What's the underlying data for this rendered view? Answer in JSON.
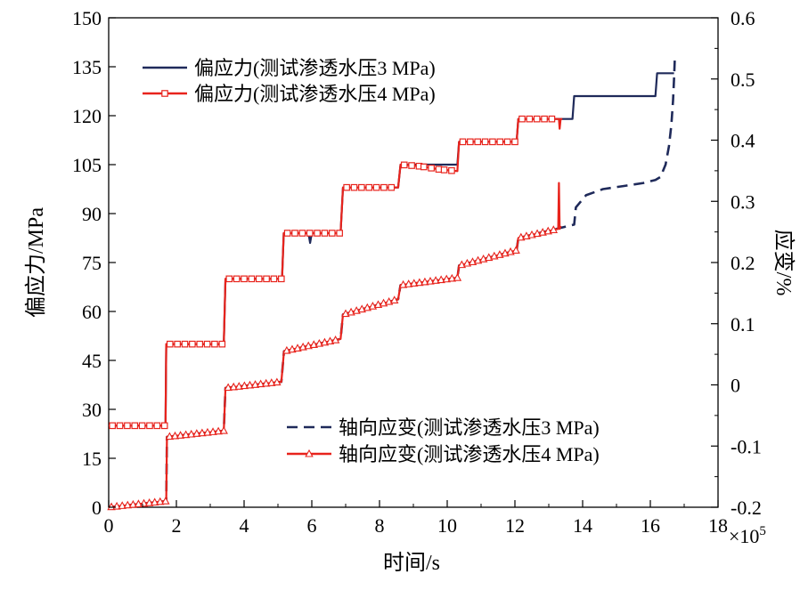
{
  "chart_data": {
    "type": "line",
    "xlabel": "时间/s",
    "ylabel_left": "偏应力/MPa",
    "ylabel_right": "应变/%",
    "x_multiplier_label": "×10",
    "x_multiplier_exp": "5",
    "xlim": [
      0,
      18
    ],
    "ylim_left": [
      0,
      150
    ],
    "ylim_right": [
      -0.2,
      0.6
    ],
    "xticks": [
      "0",
      "2",
      "4",
      "6",
      "8",
      "10",
      "12",
      "14",
      "16",
      "18"
    ],
    "yticks_left": [
      "0",
      "15",
      "30",
      "45",
      "60",
      "75",
      "90",
      "105",
      "120",
      "135",
      "150"
    ],
    "yticks_right": [
      "-0.2",
      "-0.1",
      "0",
      "0.1",
      "0.2",
      "0.3",
      "0.4",
      "0.5",
      "0.6"
    ],
    "grid": false,
    "legend_top_placement": "top-left",
    "legend_bottom_placement": "bottom-right",
    "series": [
      {
        "name": "偏应力(测试渗透水压3 MPa)",
        "axis": "left",
        "color": "#1f2a5a",
        "style": "solid",
        "marker": "none",
        "points": [
          [
            0.0,
            25
          ],
          [
            1.68,
            25
          ],
          [
            1.7,
            50
          ],
          [
            3.4,
            50
          ],
          [
            3.45,
            70
          ],
          [
            5.12,
            70
          ],
          [
            5.17,
            84
          ],
          [
            5.9,
            84
          ],
          [
            5.95,
            81
          ],
          [
            6.0,
            84
          ],
          [
            6.85,
            84
          ],
          [
            6.92,
            98
          ],
          [
            8.55,
            98
          ],
          [
            8.62,
            105
          ],
          [
            10.3,
            105
          ],
          [
            10.35,
            112
          ],
          [
            12.05,
            112
          ],
          [
            12.1,
            119
          ],
          [
            13.7,
            119
          ],
          [
            13.75,
            126
          ],
          [
            16.15,
            126
          ],
          [
            16.2,
            133
          ],
          [
            16.7,
            133
          ]
        ]
      },
      {
        "name": "偏应力(测试渗透水压4 MPa)",
        "axis": "left",
        "color": "#e8231c",
        "style": "solid",
        "marker": "square",
        "points": [
          [
            0.0,
            25
          ],
          [
            1.68,
            25
          ],
          [
            1.7,
            50
          ],
          [
            3.4,
            50
          ],
          [
            3.45,
            70
          ],
          [
            5.12,
            70
          ],
          [
            5.17,
            84
          ],
          [
            6.85,
            84
          ],
          [
            6.92,
            98
          ],
          [
            8.55,
            98
          ],
          [
            8.62,
            105
          ],
          [
            9.2,
            104.5
          ],
          [
            9.8,
            103.5
          ],
          [
            10.3,
            103
          ],
          [
            10.35,
            112
          ],
          [
            12.05,
            112
          ],
          [
            12.1,
            119
          ],
          [
            13.3,
            119
          ],
          [
            13.32,
            116
          ],
          [
            13.35,
            119
          ],
          [
            13.4,
            119
          ]
        ]
      },
      {
        "name": "轴向应变(测试渗透水压3 MPa)",
        "axis": "right",
        "color": "#1f2a5a",
        "style": "dashed",
        "marker": "none",
        "points": [
          [
            0.0,
            -0.2
          ],
          [
            1.7,
            -0.19
          ],
          [
            1.72,
            -0.085
          ],
          [
            3.4,
            -0.075
          ],
          [
            3.45,
            -0.005
          ],
          [
            5.1,
            0.005
          ],
          [
            5.18,
            0.055
          ],
          [
            6.85,
            0.075
          ],
          [
            6.92,
            0.115
          ],
          [
            8.55,
            0.14
          ],
          [
            8.62,
            0.163
          ],
          [
            10.3,
            0.175
          ],
          [
            10.35,
            0.195
          ],
          [
            12.05,
            0.22
          ],
          [
            12.1,
            0.24
          ],
          [
            13.75,
            0.262
          ],
          [
            13.8,
            0.29
          ],
          [
            14.1,
            0.31
          ],
          [
            14.6,
            0.32
          ],
          [
            15.2,
            0.325
          ],
          [
            15.8,
            0.33
          ],
          [
            16.15,
            0.335
          ],
          [
            16.3,
            0.34
          ],
          [
            16.45,
            0.36
          ],
          [
            16.55,
            0.39
          ],
          [
            16.62,
            0.425
          ],
          [
            16.67,
            0.465
          ],
          [
            16.7,
            0.5
          ],
          [
            16.72,
            0.53
          ]
        ]
      },
      {
        "name": "轴向应变(测试渗透水压4 MPa)",
        "axis": "right",
        "color": "#e8231c",
        "style": "solid",
        "marker": "triangle",
        "points": [
          [
            0.0,
            -0.2
          ],
          [
            1.7,
            -0.19
          ],
          [
            1.72,
            -0.085
          ],
          [
            3.4,
            -0.075
          ],
          [
            3.45,
            -0.005
          ],
          [
            5.1,
            0.005
          ],
          [
            5.18,
            0.055
          ],
          [
            6.85,
            0.075
          ],
          [
            6.92,
            0.115
          ],
          [
            8.55,
            0.14
          ],
          [
            8.62,
            0.163
          ],
          [
            10.3,
            0.175
          ],
          [
            10.35,
            0.195
          ],
          [
            12.05,
            0.22
          ],
          [
            12.1,
            0.24
          ],
          [
            13.28,
            0.255
          ],
          [
            13.3,
            0.33
          ],
          [
            13.32,
            0.255
          ],
          [
            13.35,
            0.26
          ]
        ]
      }
    ]
  }
}
